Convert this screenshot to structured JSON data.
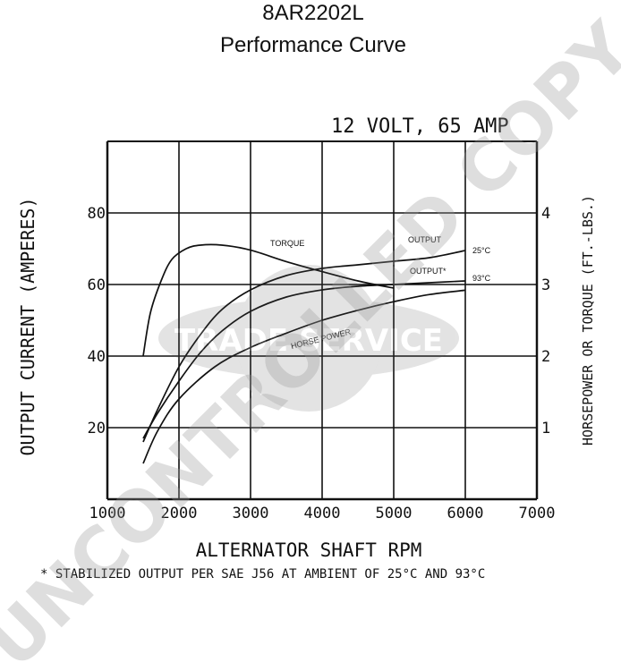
{
  "page": {
    "title": "8AR2202L",
    "subtitle": "Performance Curve",
    "watermark_main": "UNCONTROLLED COPY",
    "watermark_seal": "TRADE SERVICE",
    "footnote": "* STABILIZED OUTPUT PER SAE J56 AT AMBIENT OF 25°C AND 93°C"
  },
  "chart_data": {
    "type": "line",
    "title": "12 VOLT, 65 AMP",
    "xlabel": "ALTERNATOR SHAFT RPM",
    "ylabel": "OUTPUT CURRENT (AMPERES)",
    "y2label": "HORSEPOWER OR TORQUE (FT.-LBS.)",
    "xlim": [
      1000,
      7000
    ],
    "ylim": [
      0,
      100
    ],
    "y2lim": [
      0,
      5
    ],
    "x_ticks": [
      "1000",
      "2000",
      "3000",
      "4000",
      "5000",
      "6000",
      "7000"
    ],
    "y_ticks": [
      "20",
      "40",
      "60",
      "80"
    ],
    "y2_ticks": [
      "1",
      "2",
      "3",
      "4"
    ],
    "grid": true,
    "series": [
      {
        "name": "OUTPUT 25°C",
        "axis": "y",
        "x": [
          1500,
          1700,
          2000,
          2300,
          2600,
          3000,
          3500,
          4000,
          4500,
          5000,
          5500,
          6000
        ],
        "y": [
          16,
          25,
          37,
          46,
          53,
          58.5,
          62.5,
          64.5,
          65.5,
          66.5,
          67.5,
          69.5
        ]
      },
      {
        "name": "OUTPUT* 93°C",
        "axis": "y",
        "x": [
          1500,
          1700,
          2000,
          2300,
          2600,
          3000,
          3500,
          4000,
          4500,
          5000,
          5500,
          6000
        ],
        "y": [
          17,
          24,
          33,
          41,
          47,
          52.5,
          56.5,
          58.5,
          59.5,
          60,
          60.5,
          61
        ]
      },
      {
        "name": "TORQUE",
        "axis": "y2",
        "x": [
          1500,
          1600,
          1750,
          1900,
          2100,
          2300,
          2600,
          3000,
          3500,
          4000,
          4500,
          5000
        ],
        "y": [
          2.0,
          2.6,
          3.05,
          3.35,
          3.5,
          3.55,
          3.55,
          3.48,
          3.32,
          3.18,
          3.05,
          2.95
        ]
      },
      {
        "name": "HORSEPOWER",
        "axis": "y2",
        "x": [
          1500,
          1700,
          2000,
          2500,
          3000,
          3500,
          4000,
          4500,
          5000,
          5500,
          6000
        ],
        "y": [
          0.5,
          0.95,
          1.4,
          1.85,
          2.12,
          2.32,
          2.5,
          2.64,
          2.76,
          2.86,
          2.92
        ]
      }
    ],
    "annotations": [
      {
        "text": "TORQUE",
        "series": "TORQUE"
      },
      {
        "text": "OUTPUT",
        "series": "OUTPUT 25°C"
      },
      {
        "text": "25°C",
        "series": "OUTPUT 25°C"
      },
      {
        "text": "OUTPUT*",
        "series": "OUTPUT* 93°C"
      },
      {
        "text": "93°C",
        "series": "OUTPUT* 93°C"
      },
      {
        "text": "HORSE POWER",
        "series": "HORSEPOWER"
      }
    ]
  }
}
